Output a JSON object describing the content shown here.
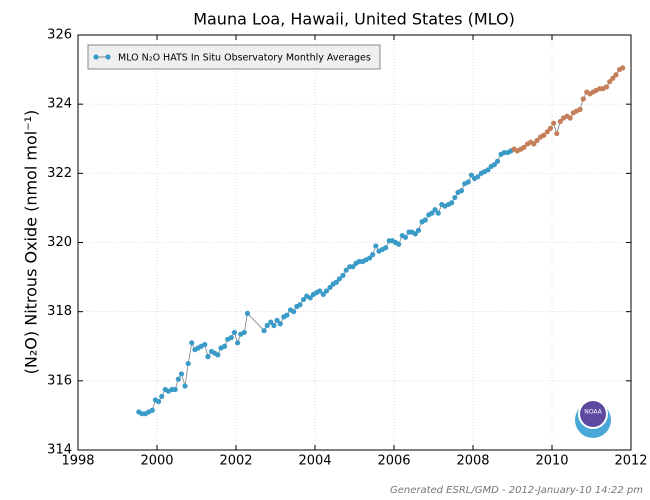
{
  "chart_data": {
    "type": "scatter",
    "title": "Mauna Loa, Hawaii, United States (MLO)",
    "y_label": "(N₂O) Nitrous Oxide (nmol mol⁻¹)",
    "footer": "Generated ESRL/GMD - 2012-January-10 14:22 pm",
    "logo_text": "NOAA",
    "xlim": [
      1998,
      2012
    ],
    "xticks": [
      1998,
      2000,
      2002,
      2004,
      2006,
      2008,
      2010,
      2012
    ],
    "ylim": [
      314,
      326
    ],
    "yticks": [
      314,
      316,
      318,
      320,
      322,
      324,
      326
    ],
    "grid": true,
    "legend": "upper left",
    "line_color": "#808080",
    "series": [
      {
        "name": "MLO N₂O HATS In Situ Observatory Monthly Averages",
        "color": "#3b9bc8",
        "x": [
          1999.54,
          1999.62,
          1999.71,
          1999.79,
          1999.88,
          1999.96,
          2000.04,
          2000.12,
          2000.21,
          2000.29,
          2000.38,
          2000.46,
          2000.54,
          2000.62,
          2000.71,
          2000.79,
          2000.88,
          2000.96,
          2001.04,
          2001.12,
          2001.21,
          2001.29,
          2001.38,
          2001.46,
          2001.54,
          2001.62,
          2001.71,
          2001.79,
          2001.88,
          2001.96,
          2002.04,
          2002.12,
          2002.21,
          2002.29,
          2002.71,
          2002.79,
          2002.88,
          2002.96,
          2003.04,
          2003.12,
          2003.21,
          2003.29,
          2003.38,
          2003.46,
          2003.54,
          2003.62,
          2003.71,
          2003.79,
          2003.88,
          2003.96,
          2004.04,
          2004.12,
          2004.21,
          2004.29,
          2004.38,
          2004.46,
          2004.54,
          2004.62,
          2004.71,
          2004.79,
          2004.88,
          2004.96,
          2005.04,
          2005.12,
          2005.21,
          2005.29,
          2005.38,
          2005.46,
          2005.54,
          2005.62,
          2005.71,
          2005.79,
          2005.88,
          2005.96,
          2006.04,
          2006.12,
          2006.21,
          2006.29,
          2006.38,
          2006.46,
          2006.54,
          2006.62,
          2006.71,
          2006.79,
          2006.88,
          2006.96,
          2007.04,
          2007.12,
          2007.21,
          2007.29,
          2007.38,
          2007.46,
          2007.54,
          2007.62,
          2007.71,
          2007.79,
          2007.88,
          2007.96,
          2008.04,
          2008.12,
          2008.21,
          2008.29,
          2008.38,
          2008.46,
          2008.54,
          2008.62,
          2008.71,
          2008.79,
          2008.88,
          2008.96
        ],
        "values": [
          315.1,
          315.05,
          315.05,
          315.1,
          315.15,
          315.45,
          315.4,
          315.55,
          315.75,
          315.7,
          315.75,
          315.75,
          316.05,
          316.2,
          315.85,
          316.5,
          317.1,
          316.9,
          316.95,
          317.0,
          317.05,
          316.7,
          316.85,
          316.8,
          316.75,
          316.95,
          317.0,
          317.2,
          317.25,
          317.4,
          317.1,
          317.35,
          317.4,
          317.95,
          317.45,
          317.6,
          317.7,
          317.6,
          317.75,
          317.65,
          317.85,
          317.9,
          318.05,
          318.0,
          318.15,
          318.2,
          318.35,
          318.45,
          318.4,
          318.5,
          318.55,
          318.6,
          318.5,
          318.6,
          318.7,
          318.8,
          318.85,
          318.95,
          319.05,
          319.2,
          319.3,
          319.3,
          319.4,
          319.45,
          319.45,
          319.5,
          319.55,
          319.65,
          319.9,
          319.75,
          319.8,
          319.85,
          320.05,
          320.05,
          320.0,
          319.95,
          320.2,
          320.15,
          320.3,
          320.3,
          320.25,
          320.35,
          320.6,
          320.65,
          320.8,
          320.85,
          320.95,
          320.85,
          321.1,
          321.05,
          321.1,
          321.15,
          321.3,
          321.45,
          321.5,
          321.7,
          321.75,
          321.95,
          321.85,
          321.9,
          322.0,
          322.05,
          322.1,
          322.2,
          322.25,
          322.35,
          322.55,
          322.6,
          322.6,
          322.65
        ]
      },
      {
        "color": "#c47f5a",
        "x": [
          2009.04,
          2009.12,
          2009.21,
          2009.29,
          2009.38,
          2009.46,
          2009.54,
          2009.62,
          2009.71,
          2009.79,
          2009.88,
          2009.96,
          2010.04,
          2010.12,
          2010.21,
          2010.29,
          2010.38,
          2010.46,
          2010.54,
          2010.62,
          2010.71,
          2010.79,
          2010.88,
          2010.96,
          2011.04,
          2011.12,
          2011.21,
          2011.29,
          2011.38,
          2011.46,
          2011.54,
          2011.62,
          2011.71,
          2011.79
        ],
        "values": [
          322.7,
          322.65,
          322.7,
          322.75,
          322.85,
          322.9,
          322.85,
          322.95,
          323.05,
          323.1,
          323.2,
          323.3,
          323.45,
          323.15,
          323.5,
          323.6,
          323.65,
          323.6,
          323.75,
          323.8,
          323.85,
          324.15,
          324.35,
          324.3,
          324.35,
          324.4,
          324.45,
          324.45,
          324.5,
          324.65,
          324.75,
          324.85,
          325.0,
          325.05
        ]
      }
    ]
  }
}
